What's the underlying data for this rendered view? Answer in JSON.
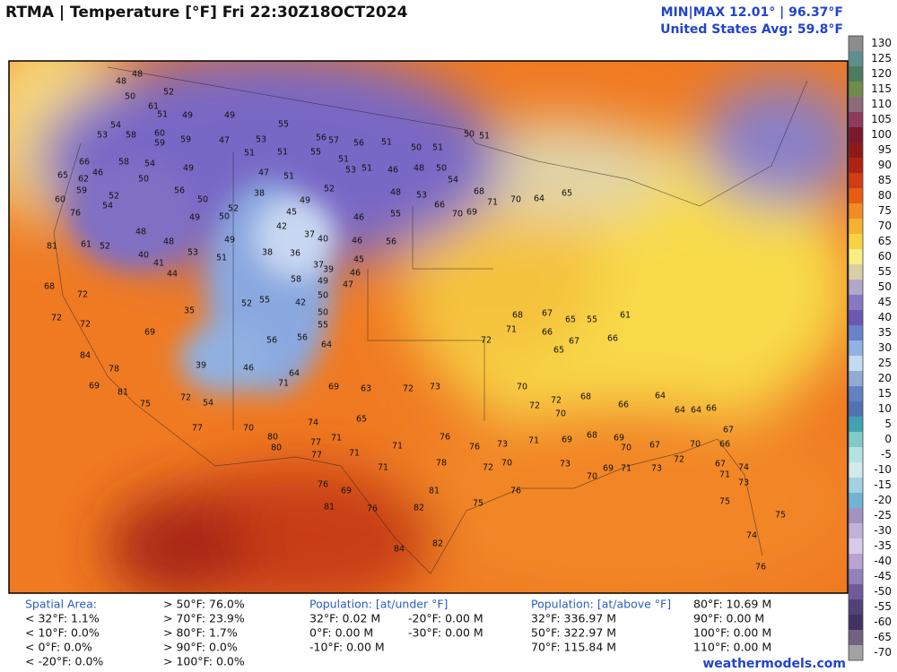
{
  "header": {
    "title": "RTMA | Temperature [°F]  Fri 22:30Z18OCT2024",
    "minmax": "MIN|MAX 12.01° | 96.37°F",
    "average": "United States Avg: 59.8°F"
  },
  "colorbar": {
    "ticks": [
      130,
      125,
      120,
      115,
      110,
      105,
      100,
      95,
      90,
      85,
      80,
      75,
      70,
      65,
      60,
      55,
      50,
      45,
      40,
      35,
      30,
      25,
      20,
      15,
      10,
      5,
      0,
      -5,
      -10,
      -15,
      -20,
      -25,
      -30,
      -35,
      -40,
      -45,
      -50,
      -55,
      -60,
      -65,
      -70
    ],
    "colors": [
      "#8c8c8c",
      "#5f8f8c",
      "#4d7d5e",
      "#6e8c4c",
      "#8c6a7c",
      "#8c3b5c",
      "#7a1a2c",
      "#8c1a1a",
      "#b02212",
      "#d23c12",
      "#e85c12",
      "#f08c22",
      "#f5b232",
      "#f8d244",
      "#f8ee84",
      "#d8d0a4",
      "#b0a8ca",
      "#8878c2",
      "#6a58b2",
      "#6a82ca",
      "#92b2e2",
      "#c2daf2",
      "#92aad2",
      "#6282c2",
      "#5272b2",
      "#42a2b2",
      "#82caca",
      "#b2e2e2",
      "#d2eaea",
      "#a2d2e2",
      "#72b2d2",
      "#a292c2",
      "#c2b2da",
      "#dacaea",
      "#baa2d2",
      "#9282ba",
      "#725a9a",
      "#52427a",
      "#423262",
      "#726282",
      "#a2a2a2"
    ]
  },
  "stations": [
    48,
    48,
    50,
    52,
    61,
    54,
    51,
    58,
    60,
    49,
    49,
    55,
    56,
    57,
    56,
    51,
    50,
    51,
    50,
    51,
    53,
    59,
    59,
    66,
    54,
    58,
    49,
    47,
    53,
    51,
    55,
    51,
    51,
    53,
    51,
    46,
    48,
    50,
    54,
    65,
    46,
    62,
    59,
    50,
    47,
    51,
    52,
    48,
    53,
    38,
    56,
    60,
    54,
    52,
    50,
    52,
    50,
    49,
    45,
    46,
    55,
    66,
    76,
    49,
    42,
    37,
    40,
    46,
    56,
    48,
    48,
    52,
    61,
    81,
    49,
    53,
    40,
    38,
    36,
    37,
    39,
    45,
    41,
    51,
    44,
    46,
    47,
    58,
    49,
    68,
    72,
    42,
    50,
    55,
    52,
    35,
    72,
    72,
    50,
    55,
    69,
    56,
    56,
    64,
    84,
    78,
    39,
    46,
    64,
    71,
    69,
    81,
    72,
    75,
    54,
    69,
    63,
    72,
    73,
    65,
    74,
    77,
    70,
    80,
    80,
    77,
    71,
    77,
    71,
    71,
    76,
    76,
    71,
    78,
    72,
    76,
    69,
    81,
    82,
    81,
    76,
    84,
    82,
    75,
    76,
    70,
    73,
    71,
    73,
    70,
    69,
    71,
    73,
    72,
    67,
    71,
    74,
    73,
    75,
    74,
    75,
    76,
    72,
    70,
    72,
    69,
    68,
    69,
    70,
    67,
    70,
    66,
    67,
    64,
    66,
    64,
    64,
    66,
    68,
    70,
    65,
    66,
    67,
    71,
    66,
    72,
    68,
    67,
    65,
    55,
    61,
    69,
    70,
    71,
    68,
    70,
    64,
    65
  ],
  "footer": {
    "spatial": {
      "title": "Spatial Area:",
      "below": [
        "< 32°F: 1.1%",
        "< 10°F: 0.0%",
        "< 0°F: 0.0%",
        "< -20°F: 0.0%"
      ],
      "above": [
        "> 50°F: 76.0%",
        "> 70°F: 23.9%",
        "> 80°F: 1.7%",
        "> 90°F: 0.0%",
        "> 100°F: 0.0%"
      ]
    },
    "pop_under": {
      "title": "Population: [at/under °F]",
      "col1": [
        "32°F: 0.02 M",
        "0°F: 0.00 M",
        "-10°F: 0.00 M"
      ],
      "col2": [
        "-20°F: 0.00 M",
        "-30°F: 0.00 M"
      ]
    },
    "pop_above": {
      "title": "Population: [at/above °F]",
      "col1": [
        "32°F: 336.97 M",
        "50°F: 322.97 M",
        "70°F: 115.84 M"
      ],
      "col2": [
        "80°F: 10.69 M",
        "90°F: 0.00 M",
        "100°F: 0.00 M",
        "110°F: 0.00 M"
      ]
    },
    "credit": "weathermodels.com"
  }
}
